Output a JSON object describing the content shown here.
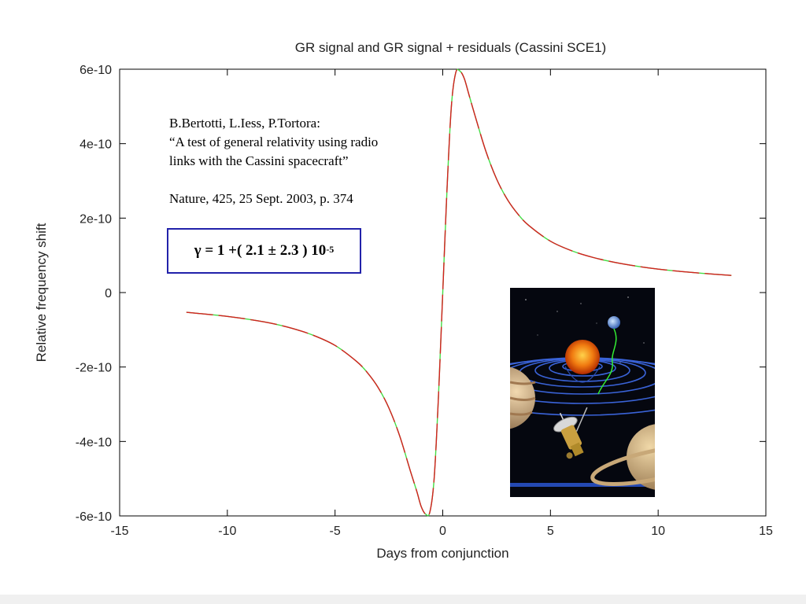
{
  "chart_data": {
    "type": "line",
    "title": "GR signal and GR signal + residuals (Cassini SCE1)",
    "xlabel": "Days from conjunction",
    "ylabel": "Relative frequency shift",
    "xlim": [
      -15,
      15
    ],
    "ylim": [
      -6e-10,
      6e-10
    ],
    "x_ticks": [
      -15,
      -10,
      -5,
      0,
      5,
      10,
      15
    ],
    "x_tick_labels": [
      "-15",
      "-10",
      "-5",
      "0",
      "5",
      "10",
      "15"
    ],
    "y_ticks": [
      -6e-10,
      -4e-10,
      -2e-10,
      0,
      2e-10,
      4e-10,
      6e-10
    ],
    "y_tick_labels": [
      "-6e-10",
      "-4e-10",
      "-2e-10",
      "0",
      "2e-10",
      "4e-10",
      "6e-10"
    ],
    "grid": false,
    "series": [
      {
        "color": "#d42020",
        "residual_color": "#44dd44",
        "x": [
          -11.9,
          -11,
          -10,
          -9,
          -8,
          -7,
          -6,
          -5,
          -4,
          -3.5,
          -3,
          -2.5,
          -2,
          -1.5,
          -1.2,
          -1.0,
          -0.8,
          -0.6,
          -0.4,
          -0.2,
          0,
          0.2,
          0.4,
          0.6,
          0.8,
          1.0,
          1.2,
          1.5,
          2,
          2.5,
          3,
          3.5,
          4,
          5,
          6,
          7,
          8,
          9,
          10,
          11,
          12,
          13.4
        ],
        "y": [
          -5.3e-11,
          -5.8e-11,
          -6.4e-11,
          -7.2e-11,
          -8.2e-11,
          -9.6e-11,
          -1.15e-10,
          -1.42e-10,
          -1.85e-10,
          -2.15e-10,
          -2.55e-10,
          -3.1e-10,
          -3.85e-10,
          -4.8e-10,
          -5.35e-10,
          -5.75e-10,
          -5.95e-10,
          -5.9e-10,
          -5e-10,
          -2.8e-10,
          0,
          2.8e-10,
          5e-10,
          5.9e-10,
          5.95e-10,
          5.75e-10,
          5.35e-10,
          4.75e-10,
          3.8e-10,
          3.05e-10,
          2.5e-10,
          2.1e-10,
          1.8e-10,
          1.38e-10,
          1.12e-10,
          9.4e-11,
          8.1e-11,
          7.1e-11,
          6.3e-11,
          5.7e-11,
          5.2e-11,
          4.6e-11
        ]
      }
    ]
  },
  "citation": {
    "authors": "B.Bertotti, L.Iess, P.Tortora:",
    "title_line1": "“A test of general relativity using radio",
    "title_line2": "links with the Cassini spacecraft”",
    "reference": "Nature, 425, 25 Sept. 2003, p. 374"
  },
  "result": {
    "text": "γ = 1 +( 2.1 ± 2.3 ) 10",
    "exponent": "-5"
  },
  "illustration": {
    "subject": "cassini-spacecraft-gravity-well-illustration",
    "colors": {
      "space": "#05070f",
      "sun": "#f07a10",
      "orbit_rings": "#3a63d8",
      "signal": "#33ee33"
    }
  }
}
